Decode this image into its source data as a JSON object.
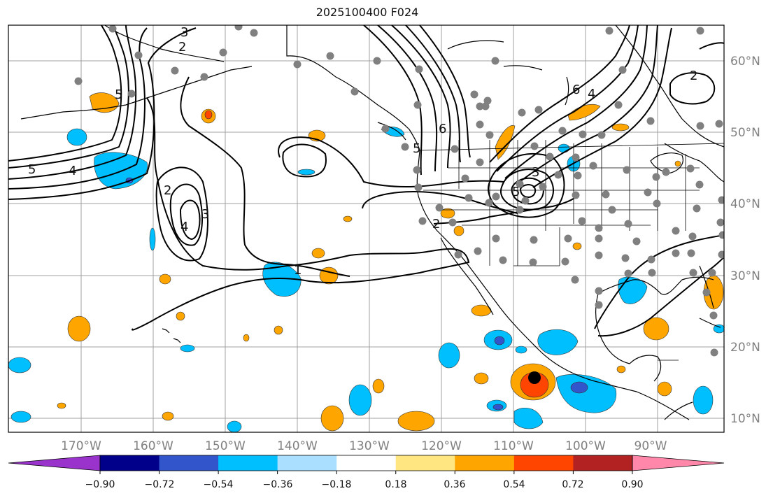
{
  "title": "2025100400 F024",
  "longitude_labels": [
    "170°W",
    "160°W",
    "150°W",
    "140°W",
    "130°W",
    "120°W",
    "110°W",
    "100°W",
    "90°W"
  ],
  "latitude_labels": [
    "60°N",
    "50°N",
    "40°N",
    "30°N",
    "20°N",
    "10°N"
  ],
  "colorbar": {
    "tick_labels": [
      "−0.90",
      "−0.72",
      "−0.54",
      "−0.36",
      "−0.18",
      "0.18",
      "0.36",
      "0.54",
      "0.72",
      "0.90"
    ],
    "colors": [
      "#9933cc",
      "#00008b",
      "#3355cc",
      "#00bfff",
      "#aadfff",
      "#ffffff",
      "#ffe680",
      "#ffa500",
      "#ff4500",
      "#b22222",
      "#ff88aa"
    ]
  },
  "contour_labels": [
    "3",
    "2",
    "5",
    "4",
    "2",
    "4",
    "3",
    "1",
    "2",
    "5",
    "6",
    "5",
    "4",
    "6",
    "3",
    "5",
    "2"
  ],
  "colors": {
    "negative_fill": "#00bfff",
    "positive_fill": "#ffa500",
    "station_dot": "#808080",
    "grid": "#a0a0a0",
    "coast": "#000000"
  }
}
